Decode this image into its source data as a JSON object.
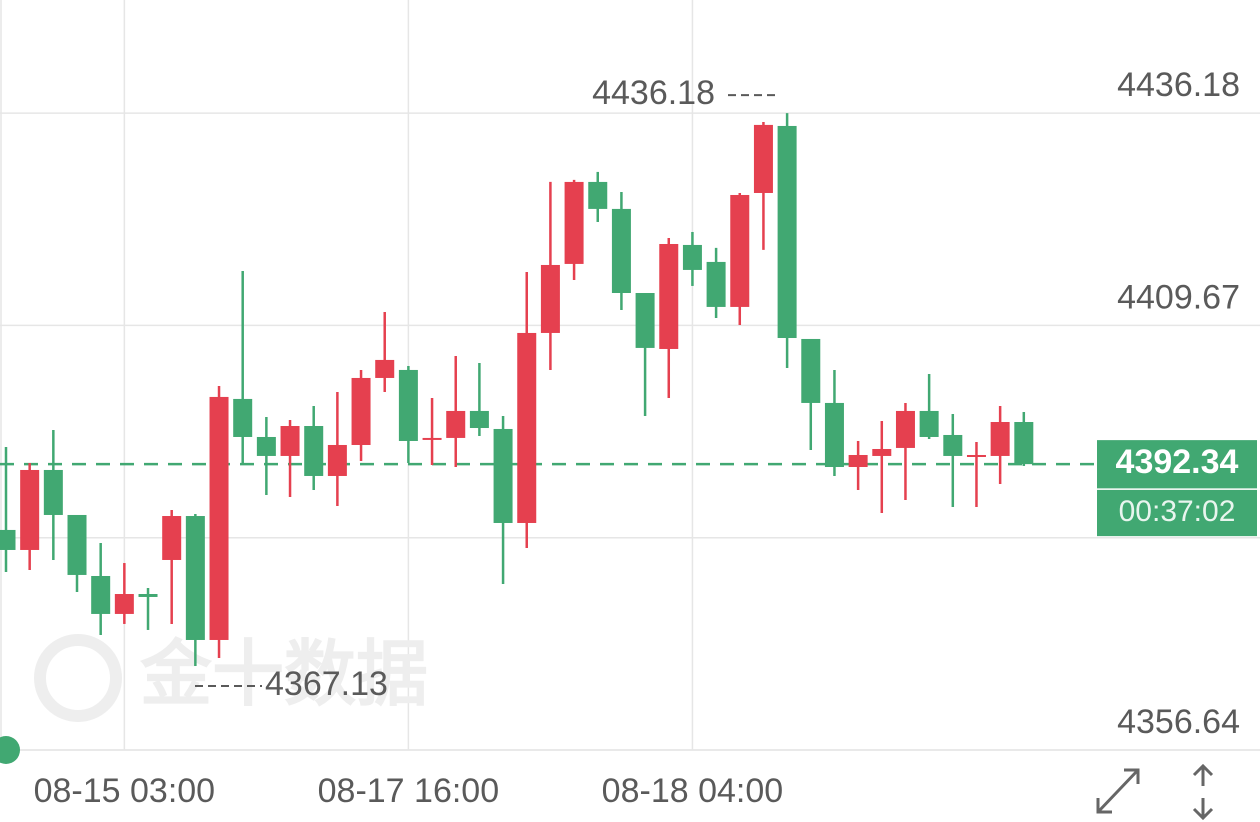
{
  "chart_data": {
    "type": "candlestick",
    "categories": [
      null,
      null,
      null,
      null,
      null,
      "08-15 03:00",
      null,
      null,
      null,
      null,
      null,
      null,
      null,
      null,
      null,
      null,
      null,
      "08-17 16:00",
      null,
      null,
      null,
      null,
      null,
      null,
      null,
      null,
      null,
      null,
      null,
      "08-18 04:00",
      null,
      null,
      null,
      null,
      null,
      null,
      null,
      null,
      null,
      null,
      null,
      null,
      null,
      null
    ],
    "open": [
      4384.12,
      4381.62,
      4391.61,
      4385.99,
      4378.37,
      4373.63,
      4376.12,
      4380.37,
      4385.86,
      4370.38,
      4400.48,
      4395.73,
      4393.36,
      4397.1,
      4390.86,
      4394.73,
      4403.1,
      4404.1,
      4395.36,
      4395.61,
      4398.98,
      4396.73,
      4384.99,
      4408.72,
      4417.34,
      4427.58,
      4424.21,
      4413.71,
      4406.72,
      4419.71,
      4417.59,
      4411.97,
      4426.2,
      4434.57,
      4407.97,
      4399.98,
      4391.98,
      4393.36,
      4394.36,
      4398.98,
      4395.98,
      4393.36,
      4393.36,
      4397.6
    ],
    "high": [
      4394.48,
      4392.48,
      4396.6,
      4385.99,
      4382.49,
      4379.99,
      4376.87,
      4386.61,
      4386.11,
      4402.1,
      4416.46,
      4398.23,
      4397.85,
      4399.6,
      4401.35,
      4404.1,
      4411.34,
      4404.6,
      4400.6,
      4405.85,
      4404.97,
      4398.35,
      4416.34,
      4427.58,
      4427.83,
      4428.83,
      4426.33,
      4413.71,
      4420.58,
      4421.33,
      4419.34,
      4426.2,
      4435.07,
      4436.18,
      4407.97,
      4404.1,
      4395.23,
      4397.73,
      4399.98,
      4403.6,
      4398.6,
      4395.11,
      4399.6,
      4398.85
    ],
    "low": [
      4378.87,
      4379.12,
      4380.37,
      4376.37,
      4371.0,
      4372.38,
      4371.63,
      4372.38,
      4367.13,
      4368.13,
      4392.23,
      4388.49,
      4388.24,
      4389.11,
      4387.11,
      4392.73,
      4401.35,
      4392.48,
      4392.23,
      4391.98,
      4395.86,
      4377.37,
      4381.87,
      4404.1,
      4415.34,
      4422.58,
      4411.59,
      4398.35,
      4400.6,
      4414.59,
      4410.59,
      4409.72,
      4419.09,
      4404.35,
      4394.11,
      4390.86,
      4389.11,
      4386.24,
      4387.86,
      4395.48,
      4386.99,
      4386.99,
      4389.86,
      4392.11
    ],
    "close": [
      4381.62,
      4391.61,
      4385.99,
      4378.5,
      4373.63,
      4376.12,
      4375.75,
      4385.86,
      4370.38,
      4400.73,
      4395.73,
      4393.36,
      4397.1,
      4390.86,
      4394.73,
      4403.1,
      4405.35,
      4395.23,
      4395.61,
      4398.98,
      4396.85,
      4384.99,
      4408.72,
      4417.21,
      4427.58,
      4424.21,
      4413.71,
      4406.85,
      4419.83,
      4416.59,
      4411.97,
      4425.95,
      4434.7,
      4408.09,
      4399.98,
      4391.98,
      4393.48,
      4394.23,
      4398.98,
      4395.73,
      4393.36,
      4393.48,
      4397.6,
      4392.34
    ],
    "up_color": "#e5404f",
    "down_color": "#41a872",
    "ylim": [
      4356.64,
      4450.3
    ],
    "yticks": [
      4356.64,
      {
        "value": 4383.15,
        "label": null
      },
      4409.67,
      4436.18
    ],
    "high_annotation": 4436.18,
    "low_annotation": 4367.13,
    "last_price": 4392.34,
    "countdown": "00:37:02",
    "watermark": "金十数据",
    "grid": true
  }
}
